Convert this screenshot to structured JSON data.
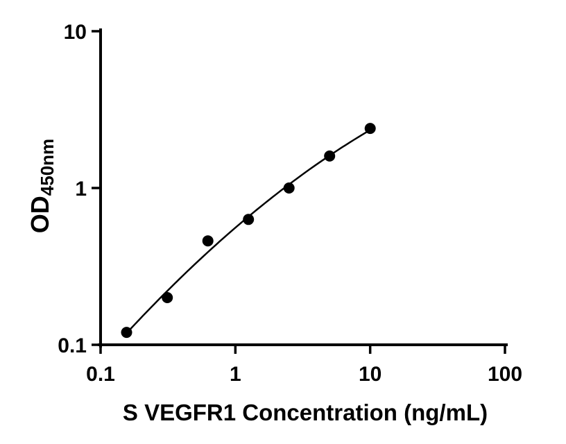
{
  "figure": {
    "background_color": "#ffffff",
    "axis_color": "#000000",
    "curve_color": "#000000",
    "point_color": "#000000"
  },
  "chart_data": {
    "type": "scatter",
    "title": "",
    "xlabel": "S VEGFR1 Concentration (ng/mL)",
    "ylabel_main": "OD",
    "ylabel_sub": "450nm",
    "x_scale": "log",
    "y_scale": "log",
    "xlim": [
      0.1,
      100
    ],
    "ylim": [
      0.1,
      10
    ],
    "x_ticks": [
      0.1,
      1,
      10,
      100
    ],
    "x_tick_labels": [
      "0.1",
      "1",
      "10",
      "100"
    ],
    "y_ticks": [
      0.1,
      1,
      10
    ],
    "y_tick_labels": [
      "0.1",
      "1",
      "10"
    ],
    "grid": false,
    "legend": "none",
    "fit_curve": "smooth curve fitted through standard points",
    "x": [
      0.156,
      0.3125,
      0.625,
      1.25,
      2.5,
      5,
      10
    ],
    "y": [
      0.12,
      0.2,
      0.46,
      0.63,
      1.0,
      1.6,
      2.4
    ]
  }
}
